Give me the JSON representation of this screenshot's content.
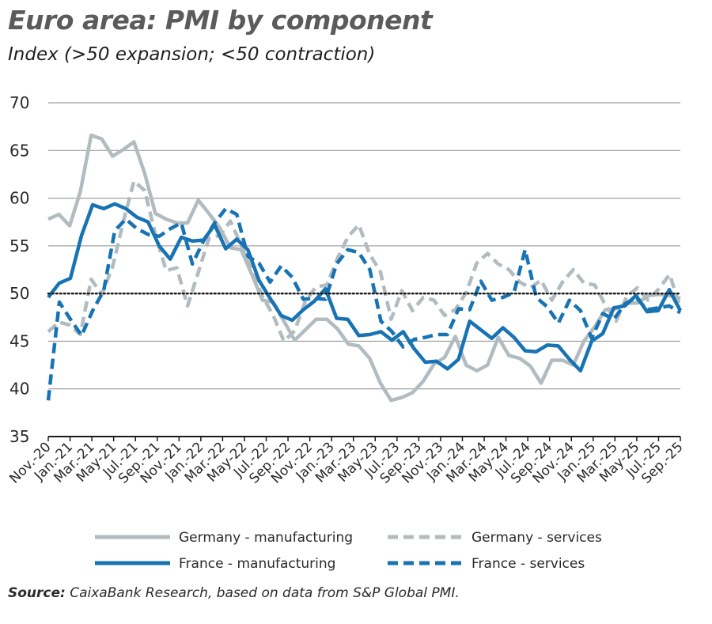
{
  "title": "Euro area: PMI by component",
  "subtitle": "Index (>50 expansion; <50 contraction)",
  "source_prefix": "Source:",
  "source_text": " CaixaBank Research, based on data from S&P Global PMI.",
  "colors": {
    "grey": "#b2bbbf",
    "blue": "#1773b3",
    "grid": "#8c8c8c",
    "axis": "#1a1a1a",
    "reference": "#1a1a1a"
  },
  "chart_data": {
    "type": "line",
    "x_tick_labels": [
      "Nov.-20",
      "Jan.-21",
      "Mar.-21",
      "May-21",
      "Jul.-21",
      "Sep.-21",
      "Nov.-21",
      "Jan.-22",
      "Mar.-22",
      "May-22",
      "Jul.-22",
      "Sep.-22",
      "Nov.-22",
      "Jan.-23",
      "Mar.-23",
      "May-23",
      "Jul.-23",
      "Sep.-23",
      "Nov.-23",
      "Jan.-24",
      "Mar.-24",
      "May-24",
      "Jul.-24",
      "Sep.-24",
      "Nov.-24",
      "Jan.-25",
      "Mar.-25",
      "May-25",
      "Jul.-25",
      "Sep.-25"
    ],
    "ylim": [
      35,
      70
    ],
    "yticks": [
      35,
      40,
      45,
      50,
      55,
      60,
      65,
      70
    ],
    "reference_line": 50,
    "grid": true,
    "legend_position": "bottom",
    "series": [
      {
        "name": "Germany - manufacturing",
        "style": "solid",
        "color": "grey",
        "values": [
          57.8,
          58.3,
          57.1,
          60.7,
          66.6,
          66.2,
          64.4,
          65.1,
          65.9,
          62.6,
          58.4,
          57.8,
          57.4,
          57.4,
          59.8,
          58.4,
          56.9,
          54.8,
          54.6,
          52.0,
          49.3,
          49.1,
          47.1,
          45.1,
          46.2,
          47.3,
          47.3,
          46.3,
          44.7,
          44.5,
          43.2,
          40.6,
          38.8,
          39.1,
          39.6,
          40.8,
          42.6,
          43.3,
          45.5,
          42.5,
          41.9,
          42.5,
          45.4,
          43.5,
          43.2,
          42.4,
          40.6,
          43.0,
          43.0,
          42.5,
          45.0,
          46.5,
          48.3,
          48.4,
          49.0,
          49.0,
          49.8,
          49.9,
          49.8,
          49.5
        ]
      },
      {
        "name": "Germany - services",
        "style": "dashed",
        "color": "grey",
        "values": [
          46.0,
          47.0,
          46.7,
          45.7,
          51.5,
          49.9,
          52.8,
          57.5,
          61.8,
          60.8,
          56.2,
          52.4,
          52.7,
          48.7,
          52.2,
          55.8,
          56.1,
          57.6,
          55.1,
          52.4,
          49.7,
          47.7,
          45.0,
          46.1,
          49.2,
          50.7,
          50.9,
          53.7,
          56.0,
          57.2,
          54.1,
          52.3,
          47.3,
          50.3,
          48.2,
          49.6,
          49.3,
          47.7,
          48.3,
          50.1,
          53.2,
          54.2,
          53.1,
          52.5,
          51.2,
          50.6,
          51.4,
          49.3,
          51.2,
          52.5,
          51.1,
          50.9,
          48.8,
          47.1,
          49.7,
          50.6,
          49.3,
          50.5,
          52.0,
          48.5
        ]
      },
      {
        "name": "France - manufacturing",
        "style": "solid",
        "color": "blue",
        "values": [
          49.6,
          51.1,
          51.6,
          56.1,
          59.3,
          58.9,
          59.4,
          58.9,
          58.0,
          57.5,
          55.0,
          53.6,
          55.9,
          55.5,
          55.6,
          57.2,
          54.7,
          55.7,
          54.6,
          51.4,
          49.5,
          47.7,
          47.2,
          48.3,
          49.2,
          50.5,
          47.4,
          47.3,
          45.6,
          45.7,
          46.0,
          45.1,
          46.0,
          44.2,
          42.8,
          42.9,
          42.1,
          43.1,
          47.1,
          46.2,
          45.3,
          46.4,
          45.4,
          44.0,
          43.9,
          44.6,
          44.5,
          43.1,
          41.9,
          45.0,
          45.8,
          48.5,
          48.7,
          49.8,
          48.1,
          48.2,
          50.4,
          48.2
        ]
      },
      {
        "name": "France - services",
        "style": "dashed",
        "color": "blue",
        "values": [
          38.8,
          49.1,
          47.3,
          45.6,
          48.2,
          50.3,
          56.6,
          57.8,
          56.8,
          56.2,
          56.0,
          56.8,
          57.4,
          53.1,
          55.5,
          57.4,
          58.9,
          58.3,
          53.9,
          53.2,
          51.2,
          52.9,
          51.7,
          49.4,
          49.5,
          49.4,
          53.1,
          54.6,
          54.3,
          52.5,
          47.1,
          46.0,
          44.4,
          45.2,
          45.4,
          45.7,
          45.7,
          48.4,
          48.3,
          51.3,
          49.3,
          49.6,
          50.1,
          54.6,
          49.6,
          48.6,
          46.9,
          49.3,
          48.2,
          45.3,
          47.9,
          47.3,
          48.9,
          49.6,
          48.3,
          48.5,
          48.7,
          48.0
        ]
      }
    ]
  },
  "legend": [
    {
      "label": "Germany - manufacturing",
      "style": "solid",
      "color": "grey"
    },
    {
      "label": "Germany - services",
      "style": "dashed",
      "color": "grey"
    },
    {
      "label": "France - manufacturing",
      "style": "solid",
      "color": "blue"
    },
    {
      "label": "France - services",
      "style": "dashed",
      "color": "blue"
    }
  ]
}
